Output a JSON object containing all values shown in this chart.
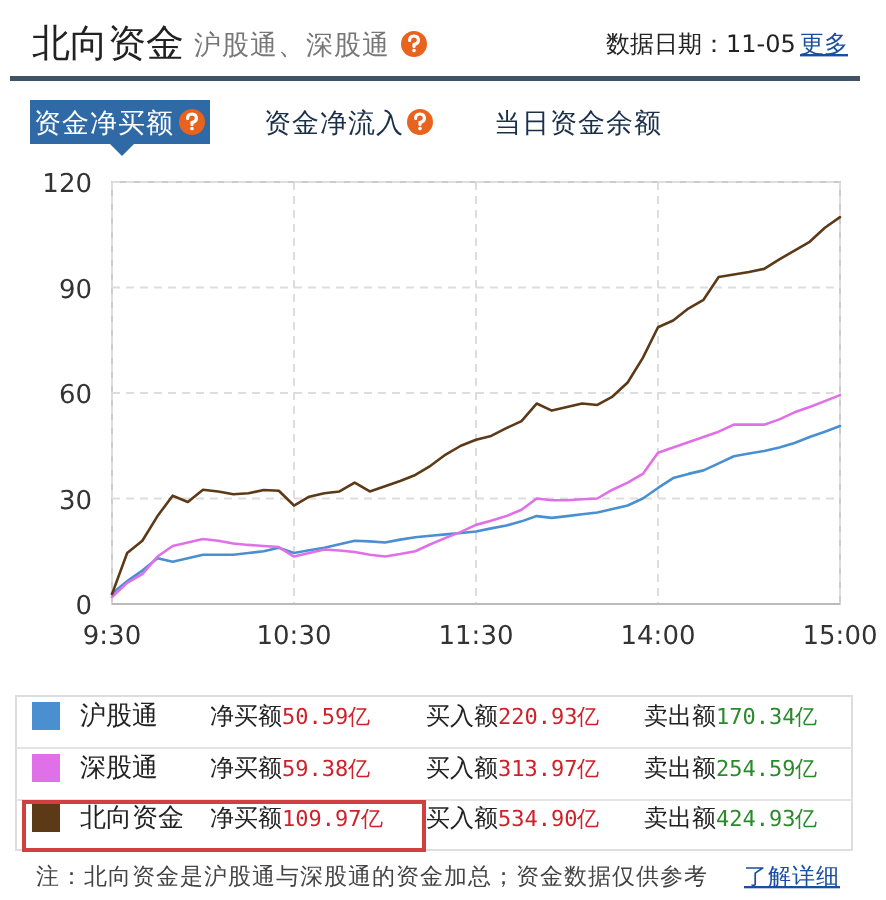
{
  "chart_data": {
    "type": "line",
    "title": "北向资金",
    "subtitle": "沪股通、深股通",
    "categories": [
      "9:30",
      null,
      null,
      null,
      null,
      null,
      null,
      null,
      null,
      null,
      null,
      null,
      "10:30",
      null,
      null,
      null,
      null,
      null,
      null,
      null,
      null,
      null,
      null,
      null,
      "11:30",
      null,
      null,
      null,
      null,
      null,
      null,
      null,
      null,
      null,
      null,
      null,
      "14:00",
      null,
      null,
      null,
      null,
      null,
      null,
      null,
      null,
      null,
      null,
      null,
      "15:00"
    ],
    "ylim": [
      0,
      120
    ],
    "yticks": [
      0,
      30,
      60,
      90,
      120
    ],
    "grid": true,
    "legend": "bottom",
    "series": [
      {
        "name": "沪股通",
        "color": "#4a8fd0",
        "values": [
          3,
          6.5,
          9.5,
          13,
          12,
          13,
          14,
          14,
          14,
          14.5,
          15,
          16,
          14.5,
          15.3,
          16,
          17,
          18,
          17.8,
          17.5,
          18.3,
          19,
          19.4,
          19.8,
          20.2,
          20.6,
          21.5,
          22.3,
          23.5,
          25,
          24.5,
          25,
          25.5,
          26,
          27,
          28,
          30,
          33,
          35.8,
          37,
          38,
          40,
          42,
          42.8,
          43.5,
          44.5,
          45.8,
          47.5,
          49,
          50.6
        ]
      },
      {
        "name": "深股通",
        "color": "#e070e8",
        "values": [
          2,
          6,
          8.5,
          13.5,
          16.5,
          17.5,
          18.5,
          18,
          17.2,
          16.8,
          16.5,
          16.2,
          13.5,
          14.5,
          15.5,
          15.2,
          14.8,
          14,
          13.5,
          14.2,
          15,
          17,
          18.8,
          20.5,
          22.5,
          23.7,
          25,
          26.8,
          30,
          29.5,
          29.5,
          29.8,
          30,
          32.5,
          34.5,
          37,
          43,
          44.5,
          46,
          47.5,
          49,
          51,
          51,
          51,
          52.5,
          54.5,
          56,
          57.7,
          59.4
        ]
      },
      {
        "name": "北向资金",
        "color": "#5c3a18",
        "values": [
          2.8,
          14.5,
          18,
          25,
          30.8,
          29,
          32.5,
          32,
          31.2,
          31.5,
          32.4,
          32.2,
          28,
          30.5,
          31.5,
          32,
          34.5,
          32,
          33.5,
          35,
          36.7,
          39.3,
          42.5,
          45,
          46.7,
          47.8,
          50,
          52,
          57,
          55,
          56,
          57,
          56.6,
          59,
          63,
          70,
          78.7,
          80.6,
          84,
          86.5,
          93,
          93.7,
          94.4,
          95.3,
          98,
          100.5,
          103,
          107,
          110
        ]
      }
    ],
    "annotations": [
      "数据日期：11-05",
      "更多",
      "资金净买额",
      "资金净流入",
      "当日资金余额",
      "净买额50.59亿",
      "买入额220.93亿",
      "卖出额170.34亿",
      "净买额59.38亿",
      "买入额313.97亿",
      "卖出额254.59亿",
      "净买额109.97亿",
      "买入额534.90亿",
      "卖出额424.93亿",
      "注：北向资金是沪股通与深股通的资金加总；资金数据仅供参考",
      "了解详细"
    ]
  }
}
